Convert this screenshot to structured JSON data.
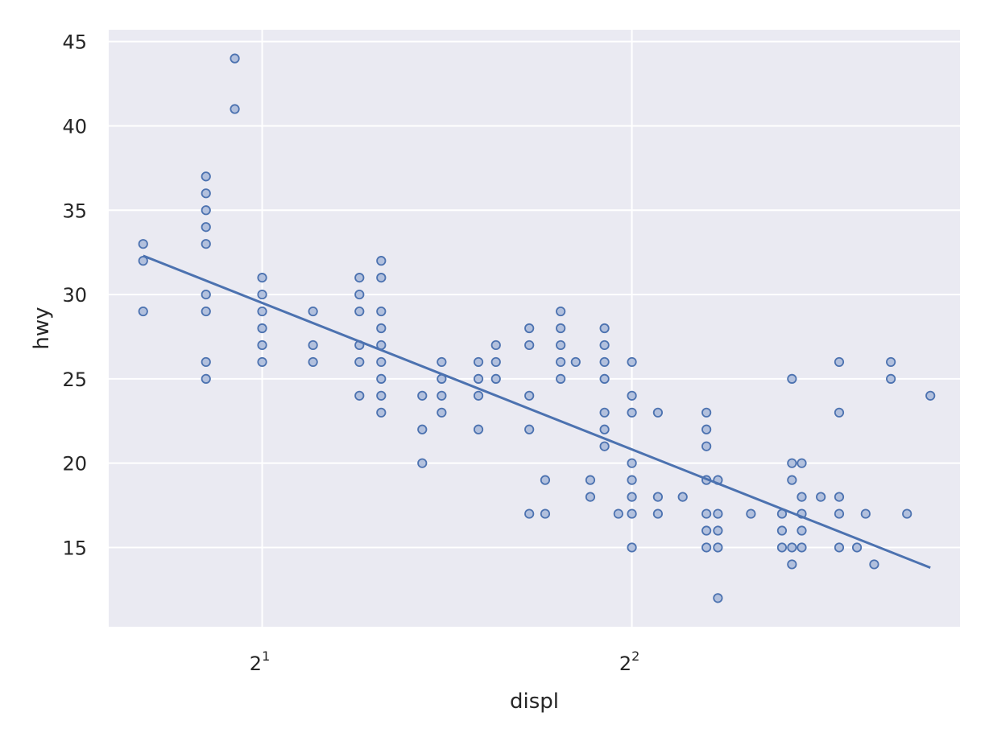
{
  "chart_data": {
    "type": "scatter",
    "xlabel": "displ",
    "ylabel": "hwy",
    "x_scale": "log2",
    "xlim": [
      1.5,
      7.4
    ],
    "ylim": [
      10.3,
      45.7
    ],
    "grid": true,
    "legend": "none",
    "x_ticks": [
      {
        "value": 2,
        "base": "2",
        "exponent": "1"
      },
      {
        "value": 4,
        "base": "2",
        "exponent": "2"
      }
    ],
    "y_ticks": [
      {
        "value": 15,
        "label": "15"
      },
      {
        "value": 20,
        "label": "20"
      },
      {
        "value": 25,
        "label": "25"
      },
      {
        "value": 30,
        "label": "30"
      },
      {
        "value": 35,
        "label": "35"
      },
      {
        "value": 40,
        "label": "40"
      },
      {
        "value": 45,
        "label": "45"
      }
    ],
    "colors": {
      "background": "#eaeaf2",
      "grid": "#ffffff",
      "point_fill": "#a8b9d9",
      "point_edge": "#4c72b0",
      "line": "#4c72b0"
    },
    "points": [
      [
        1.6,
        33
      ],
      [
        1.6,
        32
      ],
      [
        1.6,
        29
      ],
      [
        1.8,
        37
      ],
      [
        1.8,
        36
      ],
      [
        1.8,
        35
      ],
      [
        1.8,
        34
      ],
      [
        1.8,
        33
      ],
      [
        1.8,
        30
      ],
      [
        1.8,
        29
      ],
      [
        1.8,
        26
      ],
      [
        1.8,
        25
      ],
      [
        1.9,
        44
      ],
      [
        1.9,
        41
      ],
      [
        2.0,
        31
      ],
      [
        2.0,
        30
      ],
      [
        2.0,
        29
      ],
      [
        2.0,
        28
      ],
      [
        2.0,
        27
      ],
      [
        2.0,
        26
      ],
      [
        2.2,
        29
      ],
      [
        2.2,
        27
      ],
      [
        2.2,
        26
      ],
      [
        2.4,
        31
      ],
      [
        2.4,
        30
      ],
      [
        2.4,
        29
      ],
      [
        2.4,
        27
      ],
      [
        2.4,
        26
      ],
      [
        2.4,
        24
      ],
      [
        2.5,
        32
      ],
      [
        2.5,
        31
      ],
      [
        2.5,
        29
      ],
      [
        2.5,
        28
      ],
      [
        2.5,
        27
      ],
      [
        2.5,
        26
      ],
      [
        2.5,
        25
      ],
      [
        2.5,
        24
      ],
      [
        2.5,
        23
      ],
      [
        2.7,
        24
      ],
      [
        2.7,
        22
      ],
      [
        2.7,
        20
      ],
      [
        2.8,
        26
      ],
      [
        2.8,
        25
      ],
      [
        2.8,
        24
      ],
      [
        2.8,
        23
      ],
      [
        3.0,
        26
      ],
      [
        3.0,
        25
      ],
      [
        3.0,
        24
      ],
      [
        3.0,
        22
      ],
      [
        3.1,
        27
      ],
      [
        3.1,
        26
      ],
      [
        3.1,
        25
      ],
      [
        3.3,
        28
      ],
      [
        3.3,
        27
      ],
      [
        3.3,
        24
      ],
      [
        3.3,
        22
      ],
      [
        3.3,
        17
      ],
      [
        3.4,
        19
      ],
      [
        3.4,
        17
      ],
      [
        3.5,
        29
      ],
      [
        3.5,
        28
      ],
      [
        3.5,
        27
      ],
      [
        3.5,
        26
      ],
      [
        3.5,
        25
      ],
      [
        3.6,
        26
      ],
      [
        3.7,
        19
      ],
      [
        3.7,
        18
      ],
      [
        3.8,
        28
      ],
      [
        3.8,
        27
      ],
      [
        3.8,
        26
      ],
      [
        3.8,
        25
      ],
      [
        3.8,
        23
      ],
      [
        3.8,
        22
      ],
      [
        3.8,
        21
      ],
      [
        3.9,
        17
      ],
      [
        4.0,
        26
      ],
      [
        4.0,
        24
      ],
      [
        4.0,
        23
      ],
      [
        4.0,
        20
      ],
      [
        4.0,
        19
      ],
      [
        4.0,
        18
      ],
      [
        4.0,
        17
      ],
      [
        4.0,
        15
      ],
      [
        4.2,
        23
      ],
      [
        4.2,
        18
      ],
      [
        4.2,
        17
      ],
      [
        4.4,
        18
      ],
      [
        4.6,
        23
      ],
      [
        4.6,
        22
      ],
      [
        4.6,
        21
      ],
      [
        4.6,
        19
      ],
      [
        4.6,
        17
      ],
      [
        4.6,
        16
      ],
      [
        4.6,
        15
      ],
      [
        4.7,
        19
      ],
      [
        4.7,
        17
      ],
      [
        4.7,
        16
      ],
      [
        4.7,
        15
      ],
      [
        4.7,
        12
      ],
      [
        5.0,
        17
      ],
      [
        5.3,
        17
      ],
      [
        5.3,
        16
      ],
      [
        5.3,
        15
      ],
      [
        5.4,
        25
      ],
      [
        5.4,
        20
      ],
      [
        5.4,
        19
      ],
      [
        5.4,
        15
      ],
      [
        5.4,
        14
      ],
      [
        5.5,
        20
      ],
      [
        5.5,
        18
      ],
      [
        5.5,
        17
      ],
      [
        5.5,
        16
      ],
      [
        5.5,
        15
      ],
      [
        5.7,
        18
      ],
      [
        5.9,
        26
      ],
      [
        5.9,
        23
      ],
      [
        5.9,
        18
      ],
      [
        5.9,
        17
      ],
      [
        5.9,
        15
      ],
      [
        6.1,
        15
      ],
      [
        6.2,
        17
      ],
      [
        6.3,
        14
      ],
      [
        6.5,
        26
      ],
      [
        6.5,
        25
      ],
      [
        6.7,
        17
      ],
      [
        7.0,
        24
      ]
    ],
    "regression_line": {
      "x": [
        1.6,
        7.0
      ],
      "y": [
        32.3,
        13.8
      ]
    }
  }
}
